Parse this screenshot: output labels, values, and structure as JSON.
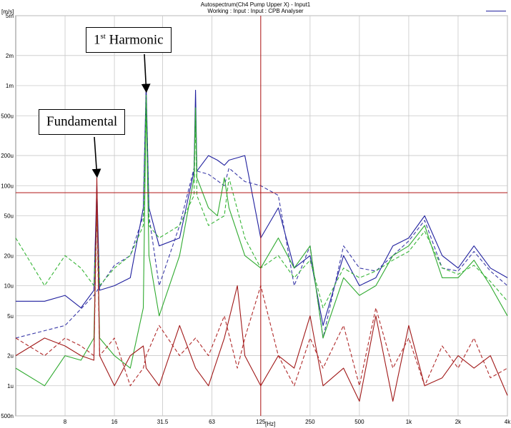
{
  "chart_data": {
    "type": "line",
    "title": "Autospectrum(Ch4 Pump Upper X) - Input1",
    "subtitle": "Working : Input : Input : CPB Analyser",
    "xlabel": "[Hz]",
    "ylabel": "[m/s]",
    "xscale": "log",
    "yscale": "log",
    "xlim": [
      4,
      4000
    ],
    "ylim": [
      0.0005,
      0.005
    ],
    "grid": true,
    "x_ticks": [
      "8",
      "16",
      "31.5",
      "63",
      "125",
      "250",
      "500",
      "1k",
      "2k",
      "4k"
    ],
    "y_ticks": [
      "5m",
      "2m",
      "1m",
      "500u",
      "200u",
      "100u",
      "50u",
      "20u",
      "10u",
      "5u",
      "2u",
      "1u",
      "500n"
    ],
    "cursor": {
      "x": 125,
      "y": 8.5e-05
    },
    "annotations": [
      {
        "label": "1",
        "label_sup": "st",
        "label_rest": " Harmonic",
        "x": 25,
        "y": 0.00085
      },
      {
        "label": "Fundamental",
        "label_sup": "",
        "label_rest": "",
        "x": 12.5,
        "y": 0.00012
      }
    ],
    "series": [
      {
        "style": "solid-blue",
        "color": "#1f1f9e",
        "points": [
          [
            4,
            7e-06
          ],
          [
            6,
            7e-06
          ],
          [
            8,
            8e-06
          ],
          [
            10,
            6e-06
          ],
          [
            12,
            9e-06
          ],
          [
            12.5,
            0.0001
          ],
          [
            13,
            9e-06
          ],
          [
            16,
            1e-05
          ],
          [
            20,
            1.2e-05
          ],
          [
            24,
            6e-05
          ],
          [
            25,
            0.001
          ],
          [
            26,
            6e-05
          ],
          [
            30,
            2.5e-05
          ],
          [
            40,
            3e-05
          ],
          [
            49,
            0.00014
          ],
          [
            50,
            0.0009
          ],
          [
            51,
            0.00014
          ],
          [
            60,
            0.0002
          ],
          [
            68,
            0.00018
          ],
          [
            75,
            0.00016
          ],
          [
            80,
            0.00018
          ],
          [
            100,
            0.0002
          ],
          [
            125,
            3e-05
          ],
          [
            160,
            6e-05
          ],
          [
            200,
            1.5e-05
          ],
          [
            250,
            2e-05
          ],
          [
            300,
            4e-06
          ],
          [
            400,
            2e-05
          ],
          [
            500,
            1e-05
          ],
          [
            630,
            1.2e-05
          ],
          [
            800,
            2.5e-05
          ],
          [
            1000,
            3e-05
          ],
          [
            1250,
            5e-05
          ],
          [
            1600,
            2e-05
          ],
          [
            2000,
            1.5e-05
          ],
          [
            2500,
            2.5e-05
          ],
          [
            3150,
            1.5e-05
          ],
          [
            4000,
            1.2e-05
          ]
        ]
      },
      {
        "style": "dashed-blue",
        "color": "#3a3aa8",
        "points": [
          [
            4,
            3e-06
          ],
          [
            8,
            4e-06
          ],
          [
            12,
            8e-06
          ],
          [
            16,
            1.6e-05
          ],
          [
            20,
            2e-05
          ],
          [
            24,
            5e-05
          ],
          [
            25,
            0.0008
          ],
          [
            26,
            5e-05
          ],
          [
            30,
            1e-05
          ],
          [
            40,
            4e-05
          ],
          [
            49,
            0.00015
          ],
          [
            50,
            0.0006
          ],
          [
            51,
            0.00014
          ],
          [
            60,
            0.00013
          ],
          [
            75,
            0.0001
          ],
          [
            80,
            0.00015
          ],
          [
            100,
            0.00011
          ],
          [
            125,
            0.0001
          ],
          [
            160,
            8e-05
          ],
          [
            200,
            1e-05
          ],
          [
            250,
            2.5e-05
          ],
          [
            300,
            3e-06
          ],
          [
            400,
            2.5e-05
          ],
          [
            500,
            1.5e-05
          ],
          [
            630,
            1.4e-05
          ],
          [
            800,
            2e-05
          ],
          [
            1000,
            2.8e-05
          ],
          [
            1250,
            4.5e-05
          ],
          [
            1600,
            1.5e-05
          ],
          [
            2000,
            1.4e-05
          ],
          [
            2500,
            2.2e-05
          ],
          [
            3150,
            1.4e-05
          ],
          [
            4000,
            1e-05
          ]
        ]
      },
      {
        "style": "solid-green",
        "color": "#2faa2f",
        "points": [
          [
            4,
            1.5e-06
          ],
          [
            6,
            1e-06
          ],
          [
            8,
            2e-06
          ],
          [
            10,
            1.8e-06
          ],
          [
            12,
            3e-06
          ],
          [
            12.5,
            7e-05
          ],
          [
            13,
            3e-06
          ],
          [
            16,
            2e-06
          ],
          [
            20,
            1.5e-06
          ],
          [
            24,
            6e-06
          ],
          [
            25,
            0.0007
          ],
          [
            26,
            2e-05
          ],
          [
            30,
            5e-06
          ],
          [
            40,
            2e-05
          ],
          [
            49,
            0.00012
          ],
          [
            50,
            0.0006
          ],
          [
            51,
            0.00012
          ],
          [
            60,
            6e-05
          ],
          [
            68,
            5e-05
          ],
          [
            75,
            0.00012
          ],
          [
            80,
            6e-05
          ],
          [
            100,
            2e-05
          ],
          [
            125,
            1.5e-05
          ],
          [
            160,
            3e-05
          ],
          [
            200,
            1.5e-05
          ],
          [
            250,
            2.5e-05
          ],
          [
            300,
            3e-06
          ],
          [
            400,
            1.2e-05
          ],
          [
            500,
            8e-06
          ],
          [
            630,
            1e-05
          ],
          [
            800,
            2e-05
          ],
          [
            1000,
            2.5e-05
          ],
          [
            1250,
            4e-05
          ],
          [
            1600,
            1.2e-05
          ],
          [
            2000,
            1.2e-05
          ],
          [
            2500,
            1.8e-05
          ],
          [
            3150,
            1e-05
          ],
          [
            4000,
            5e-06
          ]
        ]
      },
      {
        "style": "dashed-green",
        "color": "#36b536",
        "points": [
          [
            4,
            3e-05
          ],
          [
            6,
            1e-05
          ],
          [
            8,
            2e-05
          ],
          [
            10,
            1.5e-05
          ],
          [
            12,
            1e-05
          ],
          [
            12.5,
            5e-05
          ],
          [
            13,
            1e-05
          ],
          [
            16,
            1.5e-05
          ],
          [
            20,
            2e-05
          ],
          [
            24,
            4e-05
          ],
          [
            25,
            0.0008
          ],
          [
            26,
            4e-05
          ],
          [
            30,
            3e-05
          ],
          [
            40,
            4e-05
          ],
          [
            49,
            8e-05
          ],
          [
            50,
            0.0005
          ],
          [
            51,
            8e-05
          ],
          [
            60,
            4e-05
          ],
          [
            75,
            5e-05
          ],
          [
            80,
            0.00012
          ],
          [
            100,
            3e-05
          ],
          [
            125,
            1.5e-05
          ],
          [
            160,
            2e-05
          ],
          [
            200,
            1.2e-05
          ],
          [
            250,
            1.8e-05
          ],
          [
            300,
            6e-06
          ],
          [
            400,
            1.5e-05
          ],
          [
            500,
            1.2e-05
          ],
          [
            630,
            1.4e-05
          ],
          [
            800,
            1.8e-05
          ],
          [
            1000,
            2.2e-05
          ],
          [
            1250,
            3.5e-05
          ],
          [
            1600,
            1.5e-05
          ],
          [
            2000,
            1.3e-05
          ],
          [
            2500,
            1.6e-05
          ],
          [
            3150,
            1.1e-05
          ],
          [
            4000,
            7e-06
          ]
        ]
      },
      {
        "style": "solid-red",
        "color": "#a01818",
        "points": [
          [
            4,
            2e-06
          ],
          [
            6,
            3e-06
          ],
          [
            8,
            2.5e-06
          ],
          [
            10,
            2e-06
          ],
          [
            12,
            1.8e-06
          ],
          [
            12.5,
            0.00012
          ],
          [
            13,
            2e-06
          ],
          [
            16,
            1e-06
          ],
          [
            20,
            2e-06
          ],
          [
            24,
            2.5e-06
          ],
          [
            25,
            1.5e-06
          ],
          [
            30,
            1e-06
          ],
          [
            40,
            4e-06
          ],
          [
            50,
            1.5e-06
          ],
          [
            60,
            1e-06
          ],
          [
            75,
            3e-06
          ],
          [
            90,
            1e-05
          ],
          [
            100,
            2e-06
          ],
          [
            125,
            1e-06
          ],
          [
            160,
            2e-06
          ],
          [
            200,
            1.5e-06
          ],
          [
            250,
            5e-06
          ],
          [
            300,
            1e-06
          ],
          [
            400,
            1.5e-06
          ],
          [
            500,
            7e-07
          ],
          [
            630,
            5e-06
          ],
          [
            800,
            7e-07
          ],
          [
            1000,
            4e-06
          ],
          [
            1250,
            1e-06
          ],
          [
            1600,
            1.2e-06
          ],
          [
            2000,
            2e-06
          ],
          [
            2500,
            1.5e-06
          ],
          [
            3150,
            2e-06
          ],
          [
            4000,
            8e-07
          ]
        ]
      },
      {
        "style": "dashed-red",
        "color": "#b02a2a",
        "points": [
          [
            4,
            3e-06
          ],
          [
            6,
            2e-06
          ],
          [
            8,
            3e-06
          ],
          [
            10,
            2.5e-06
          ],
          [
            12,
            2e-06
          ],
          [
            12.5,
            6e-05
          ],
          [
            13,
            2e-06
          ],
          [
            16,
            3e-06
          ],
          [
            20,
            1e-06
          ],
          [
            24,
            1.5e-06
          ],
          [
            25,
            2e-06
          ],
          [
            30,
            4e-06
          ],
          [
            40,
            2e-06
          ],
          [
            50,
            3e-06
          ],
          [
            60,
            2e-06
          ],
          [
            75,
            5e-06
          ],
          [
            90,
            1.5e-06
          ],
          [
            100,
            3e-06
          ],
          [
            125,
            1e-05
          ],
          [
            160,
            2e-06
          ],
          [
            200,
            1e-06
          ],
          [
            250,
            3e-06
          ],
          [
            300,
            1.5e-06
          ],
          [
            400,
            4e-06
          ],
          [
            500,
            1e-06
          ],
          [
            630,
            6e-06
          ],
          [
            800,
            1.5e-06
          ],
          [
            1000,
            3e-06
          ],
          [
            1250,
            1e-06
          ],
          [
            1600,
            2.5e-06
          ],
          [
            2000,
            1.5e-06
          ],
          [
            2500,
            3e-06
          ],
          [
            3150,
            1.2e-06
          ],
          [
            4000,
            1.5e-06
          ]
        ]
      }
    ]
  }
}
